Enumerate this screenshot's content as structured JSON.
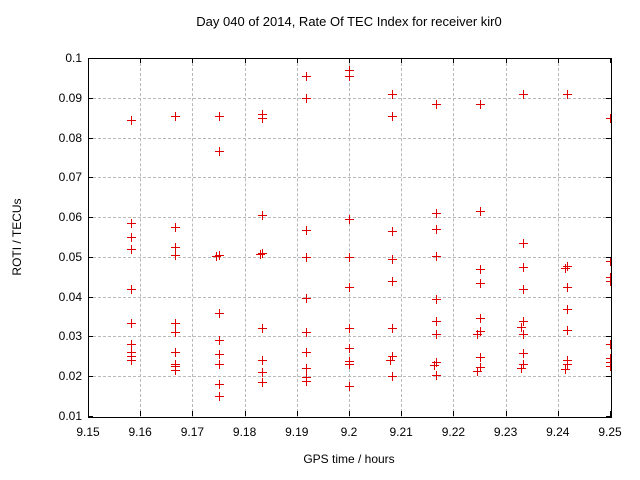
{
  "chart_data": {
    "type": "scatter",
    "title": "Day 040 of 2014, Rate Of TEC Index for receiver kir0",
    "xlabel": "GPS time / hours",
    "ylabel": "ROTI / TECUs",
    "xlim": [
      9.15,
      9.25
    ],
    "ylim": [
      0.01,
      0.1
    ],
    "xticks": [
      {
        "value": 9.15,
        "label": "9.15"
      },
      {
        "value": 9.16,
        "label": "9.16"
      },
      {
        "value": 9.17,
        "label": "9.17"
      },
      {
        "value": 9.18,
        "label": "9.18"
      },
      {
        "value": 9.19,
        "label": "9.19"
      },
      {
        "value": 9.2,
        "label": "9.2"
      },
      {
        "value": 9.21,
        "label": "9.21"
      },
      {
        "value": 9.22,
        "label": "9.22"
      },
      {
        "value": 9.23,
        "label": "9.23"
      },
      {
        "value": 9.24,
        "label": "9.24"
      },
      {
        "value": 9.25,
        "label": "9.25"
      }
    ],
    "yticks": [
      {
        "value": 0.1,
        "label": "0.1"
      },
      {
        "value": 0.09,
        "label": "0.09"
      },
      {
        "value": 0.08,
        "label": "0.08"
      },
      {
        "value": 0.07,
        "label": "0.07"
      },
      {
        "value": 0.06,
        "label": "0.06"
      },
      {
        "value": 0.05,
        "label": "0.05"
      },
      {
        "value": 0.04,
        "label": "0.04"
      },
      {
        "value": 0.03,
        "label": "0.03"
      },
      {
        "value": 0.02,
        "label": "0.02"
      },
      {
        "value": 0.01,
        "label": "0.01"
      }
    ],
    "grid": true,
    "legend": "none",
    "marker": "plus",
    "marker_color": "#e00000",
    "series": [
      {
        "name": "ROTI",
        "points": [
          [
            9.1583,
            0.0845
          ],
          [
            9.1583,
            0.0585
          ],
          [
            9.1583,
            0.055
          ],
          [
            9.1583,
            0.052
          ],
          [
            9.1583,
            0.042
          ],
          [
            9.1583,
            0.0335
          ],
          [
            9.1583,
            0.028
          ],
          [
            9.1583,
            0.026
          ],
          [
            9.1583,
            0.025
          ],
          [
            9.1583,
            0.024
          ],
          [
            9.1667,
            0.0855
          ],
          [
            9.1667,
            0.0575
          ],
          [
            9.1667,
            0.0525
          ],
          [
            9.1667,
            0.0505
          ],
          [
            9.1667,
            0.0335
          ],
          [
            9.1667,
            0.031
          ],
          [
            9.1667,
            0.026
          ],
          [
            9.1667,
            0.023
          ],
          [
            9.1667,
            0.0225
          ],
          [
            9.1667,
            0.0215
          ],
          [
            9.175,
            0.0855
          ],
          [
            9.175,
            0.0765
          ],
          [
            9.175,
            0.0505
          ],
          [
            9.1745,
            0.0503
          ],
          [
            9.175,
            0.0358
          ],
          [
            9.175,
            0.029
          ],
          [
            9.175,
            0.0255
          ],
          [
            9.175,
            0.023
          ],
          [
            9.175,
            0.018
          ],
          [
            9.175,
            0.015
          ],
          [
            9.1833,
            0.086
          ],
          [
            9.1833,
            0.085
          ],
          [
            9.1833,
            0.0605
          ],
          [
            9.1833,
            0.051
          ],
          [
            9.1829,
            0.0508
          ],
          [
            9.1833,
            0.032
          ],
          [
            9.1833,
            0.024
          ],
          [
            9.1833,
            0.021
          ],
          [
            9.1833,
            0.0185
          ],
          [
            9.1917,
            0.0955
          ],
          [
            9.1917,
            0.09
          ],
          [
            9.1917,
            0.0568
          ],
          [
            9.1917,
            0.05
          ],
          [
            9.1917,
            0.0397
          ],
          [
            9.1917,
            0.0312
          ],
          [
            9.1917,
            0.026
          ],
          [
            9.1917,
            0.022
          ],
          [
            9.1917,
            0.0198
          ],
          [
            9.1917,
            0.0187
          ],
          [
            9.2,
            0.097
          ],
          [
            9.2,
            0.0955
          ],
          [
            9.2,
            0.0595
          ],
          [
            9.2,
            0.05
          ],
          [
            9.2,
            0.0424
          ],
          [
            9.2,
            0.0322
          ],
          [
            9.2,
            0.0271
          ],
          [
            9.2,
            0.0239
          ],
          [
            9.2,
            0.023
          ],
          [
            9.2,
            0.0175
          ],
          [
            9.2083,
            0.091
          ],
          [
            9.2083,
            0.0855
          ],
          [
            9.2083,
            0.0565
          ],
          [
            9.2083,
            0.0495
          ],
          [
            9.2083,
            0.044
          ],
          [
            9.2083,
            0.0322
          ],
          [
            9.2083,
            0.025
          ],
          [
            9.2079,
            0.0242
          ],
          [
            9.2083,
            0.02
          ],
          [
            9.2167,
            0.0885
          ],
          [
            9.2167,
            0.061
          ],
          [
            9.2167,
            0.0569
          ],
          [
            9.2167,
            0.0503
          ],
          [
            9.2167,
            0.0394
          ],
          [
            9.2167,
            0.0339
          ],
          [
            9.2167,
            0.0306
          ],
          [
            9.2167,
            0.0235
          ],
          [
            9.2163,
            0.0227
          ],
          [
            9.2167,
            0.0203
          ],
          [
            9.225,
            0.0885
          ],
          [
            9.225,
            0.0615
          ],
          [
            9.225,
            0.047
          ],
          [
            9.225,
            0.0435
          ],
          [
            9.225,
            0.0346
          ],
          [
            9.225,
            0.0314
          ],
          [
            9.2246,
            0.0306
          ],
          [
            9.225,
            0.0249
          ],
          [
            9.225,
            0.0222
          ],
          [
            9.2246,
            0.0214
          ],
          [
            9.2333,
            0.091
          ],
          [
            9.2333,
            0.0535
          ],
          [
            9.2333,
            0.0475
          ],
          [
            9.2333,
            0.042
          ],
          [
            9.2333,
            0.034
          ],
          [
            9.2329,
            0.0323
          ],
          [
            9.2333,
            0.0306
          ],
          [
            9.2333,
            0.0258
          ],
          [
            9.2333,
            0.023
          ],
          [
            9.2329,
            0.022
          ],
          [
            9.2417,
            0.091
          ],
          [
            9.2417,
            0.0478
          ],
          [
            9.2413,
            0.0473
          ],
          [
            9.2417,
            0.0425
          ],
          [
            9.2417,
            0.037
          ],
          [
            9.2417,
            0.0315
          ],
          [
            9.2417,
            0.0242
          ],
          [
            9.2417,
            0.023
          ],
          [
            9.2413,
            0.0218
          ],
          [
            9.25,
            0.085
          ],
          [
            9.25,
            0.049
          ],
          [
            9.25,
            0.045
          ],
          [
            9.25,
            0.044
          ],
          [
            9.25,
            0.028
          ],
          [
            9.25,
            0.0245
          ],
          [
            9.25,
            0.0235
          ],
          [
            9.25,
            0.0225
          ]
        ]
      }
    ]
  }
}
